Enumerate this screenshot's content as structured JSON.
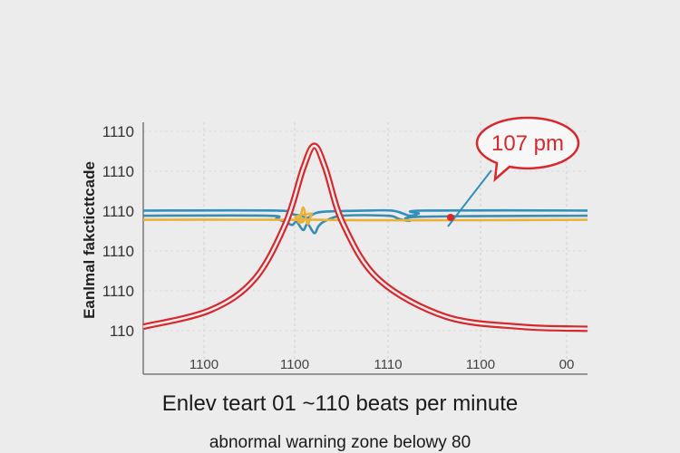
{
  "chart_data": {
    "type": "line",
    "ylabel": "Eanlmal fakcticttcade",
    "yticks": [
      "1110",
      "1110",
      "1110",
      "1110",
      "1110",
      "110"
    ],
    "xticks": [
      "1100",
      "1100",
      "1110",
      "1100",
      "00"
    ],
    "grid": true,
    "callout": {
      "text": "107 pm",
      "color": "#d6282d"
    },
    "series": [
      {
        "color": "#d6282d",
        "style": "double",
        "points": [
          [
            0,
            0.05
          ],
          [
            0.15,
            0.13
          ],
          [
            0.25,
            0.28
          ],
          [
            0.32,
            0.55
          ],
          [
            0.36,
            0.82
          ],
          [
            0.385,
            0.93
          ],
          [
            0.41,
            0.82
          ],
          [
            0.45,
            0.55
          ],
          [
            0.53,
            0.28
          ],
          [
            0.68,
            0.1
          ],
          [
            0.85,
            0.05
          ],
          [
            1,
            0.04
          ]
        ]
      },
      {
        "color": "#2f8fbf",
        "style": "single",
        "points": [
          [
            0,
            0.615
          ],
          [
            0.3,
            0.615
          ],
          [
            0.33,
            0.6
          ],
          [
            0.355,
            0.59
          ],
          [
            0.37,
            0.58
          ],
          [
            0.385,
            0.6
          ],
          [
            0.41,
            0.61
          ],
          [
            0.5,
            0.615
          ],
          [
            0.56,
            0.615
          ],
          [
            0.585,
            0.6
          ],
          [
            0.6,
            0.59
          ],
          [
            0.62,
            0.6
          ],
          [
            0.63,
            0.615
          ],
          [
            1,
            0.615
          ]
        ]
      },
      {
        "color": "#3a8cb0",
        "style": "single",
        "points": [
          [
            0,
            0.59
          ],
          [
            0.28,
            0.59
          ],
          [
            0.3,
            0.575
          ],
          [
            0.32,
            0.56
          ],
          [
            0.335,
            0.545
          ],
          [
            0.345,
            0.56
          ],
          [
            0.36,
            0.52
          ],
          [
            0.37,
            0.55
          ],
          [
            0.385,
            0.505
          ],
          [
            0.395,
            0.54
          ],
          [
            0.41,
            0.565
          ],
          [
            0.45,
            0.59
          ],
          [
            0.55,
            0.59
          ],
          [
            0.575,
            0.575
          ],
          [
            0.6,
            0.565
          ],
          [
            0.625,
            0.585
          ],
          [
            1,
            0.59
          ]
        ]
      },
      {
        "color": "#e8b23a",
        "style": "single",
        "points": [
          [
            0,
            0.57
          ],
          [
            0.33,
            0.57
          ],
          [
            0.35,
            0.56
          ],
          [
            0.36,
            0.63
          ],
          [
            0.37,
            0.55
          ],
          [
            0.38,
            0.6
          ],
          [
            0.39,
            0.57
          ],
          [
            1,
            0.57
          ]
        ]
      }
    ]
  },
  "captions": {
    "line1": "Enlev teart 01 ~110 beats per minute",
    "line2": "abnormal warning zone belowy 80"
  }
}
